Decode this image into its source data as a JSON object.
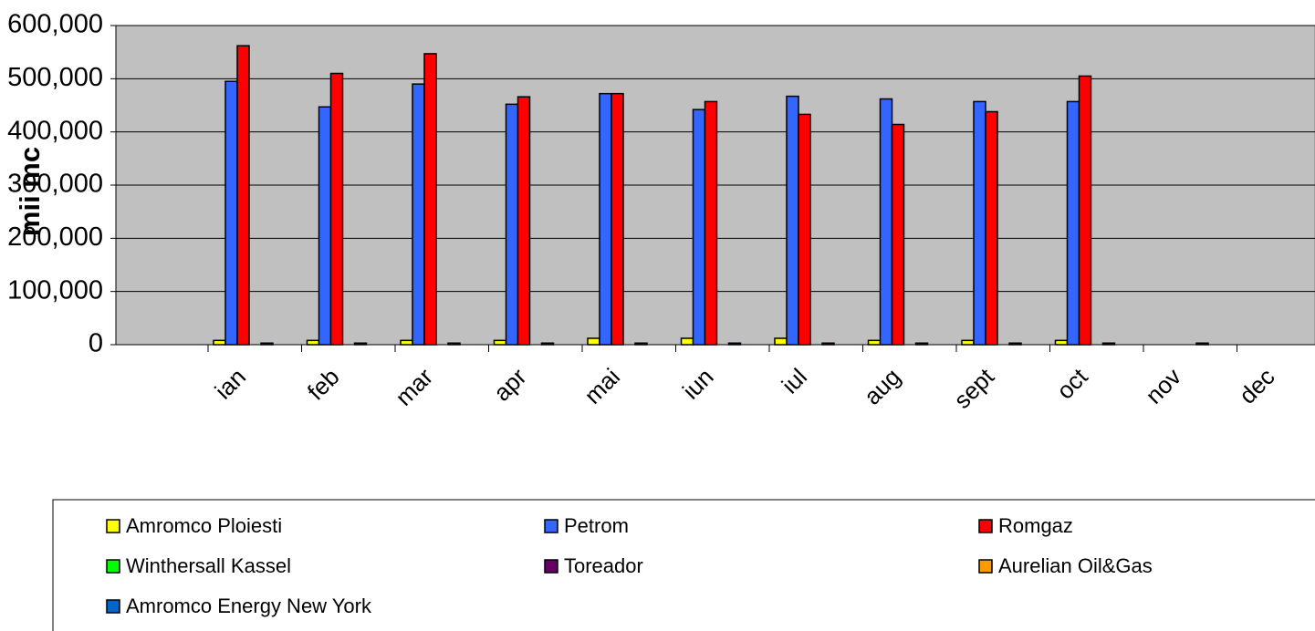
{
  "chart_data": {
    "type": "bar",
    "y_label": "mii mc",
    "categories": [
      "ian",
      "feb",
      "mar",
      "apr",
      "mai",
      "iun",
      "iul",
      "aug",
      "sept",
      "oct",
      "nov",
      "dec"
    ],
    "series": [
      {
        "name": "Amromco Ploiesti",
        "color": "#ffff00",
        "values": [
          8000,
          8000,
          8000,
          8000,
          12000,
          12000,
          12000,
          8000,
          8000,
          8000,
          null,
          null
        ]
      },
      {
        "name": "Petrom",
        "color": "#3366ff",
        "values": [
          495000,
          447000,
          490000,
          452000,
          472000,
          442000,
          467000,
          462000,
          457000,
          457000,
          null,
          null
        ]
      },
      {
        "name": "Romgaz",
        "color": "#ff0000",
        "values": [
          562000,
          510000,
          547000,
          466000,
          472000,
          457000,
          433000,
          414000,
          438000,
          505000,
          null,
          null
        ]
      },
      {
        "name": "Winthersall Kassel",
        "color": "#00ff00",
        "values": [
          0,
          0,
          0,
          0,
          0,
          0,
          0,
          0,
          0,
          0,
          null,
          null
        ]
      },
      {
        "name": "Toreador",
        "color": "#660066",
        "values": [
          3000,
          3000,
          3000,
          3000,
          3000,
          3000,
          3000,
          3000,
          3000,
          3000,
          3000,
          null
        ]
      },
      {
        "name": "Aurelian Oil&Gas",
        "color": "#ff9900",
        "values": [
          0,
          0,
          0,
          0,
          0,
          0,
          0,
          0,
          0,
          0,
          null,
          null
        ]
      },
      {
        "name": "Amromco Energy New York",
        "color": "#0066cc",
        "values": [
          0,
          0,
          0,
          0,
          0,
          0,
          0,
          0,
          0,
          0,
          null,
          null
        ]
      }
    ],
    "ylim": [
      0,
      600000
    ],
    "yticks": [
      0,
      {
        "value": 100000,
        "label": "100,000"
      },
      {
        "value": 200000,
        "label": "200,000"
      },
      {
        "value": 300000,
        "label": "300,000"
      },
      {
        "value": 400000,
        "label": "400,000"
      },
      {
        "value": 500000,
        "label": "500,000"
      },
      {
        "value": 600000,
        "label": "600,000"
      }
    ],
    "grid": true
  }
}
